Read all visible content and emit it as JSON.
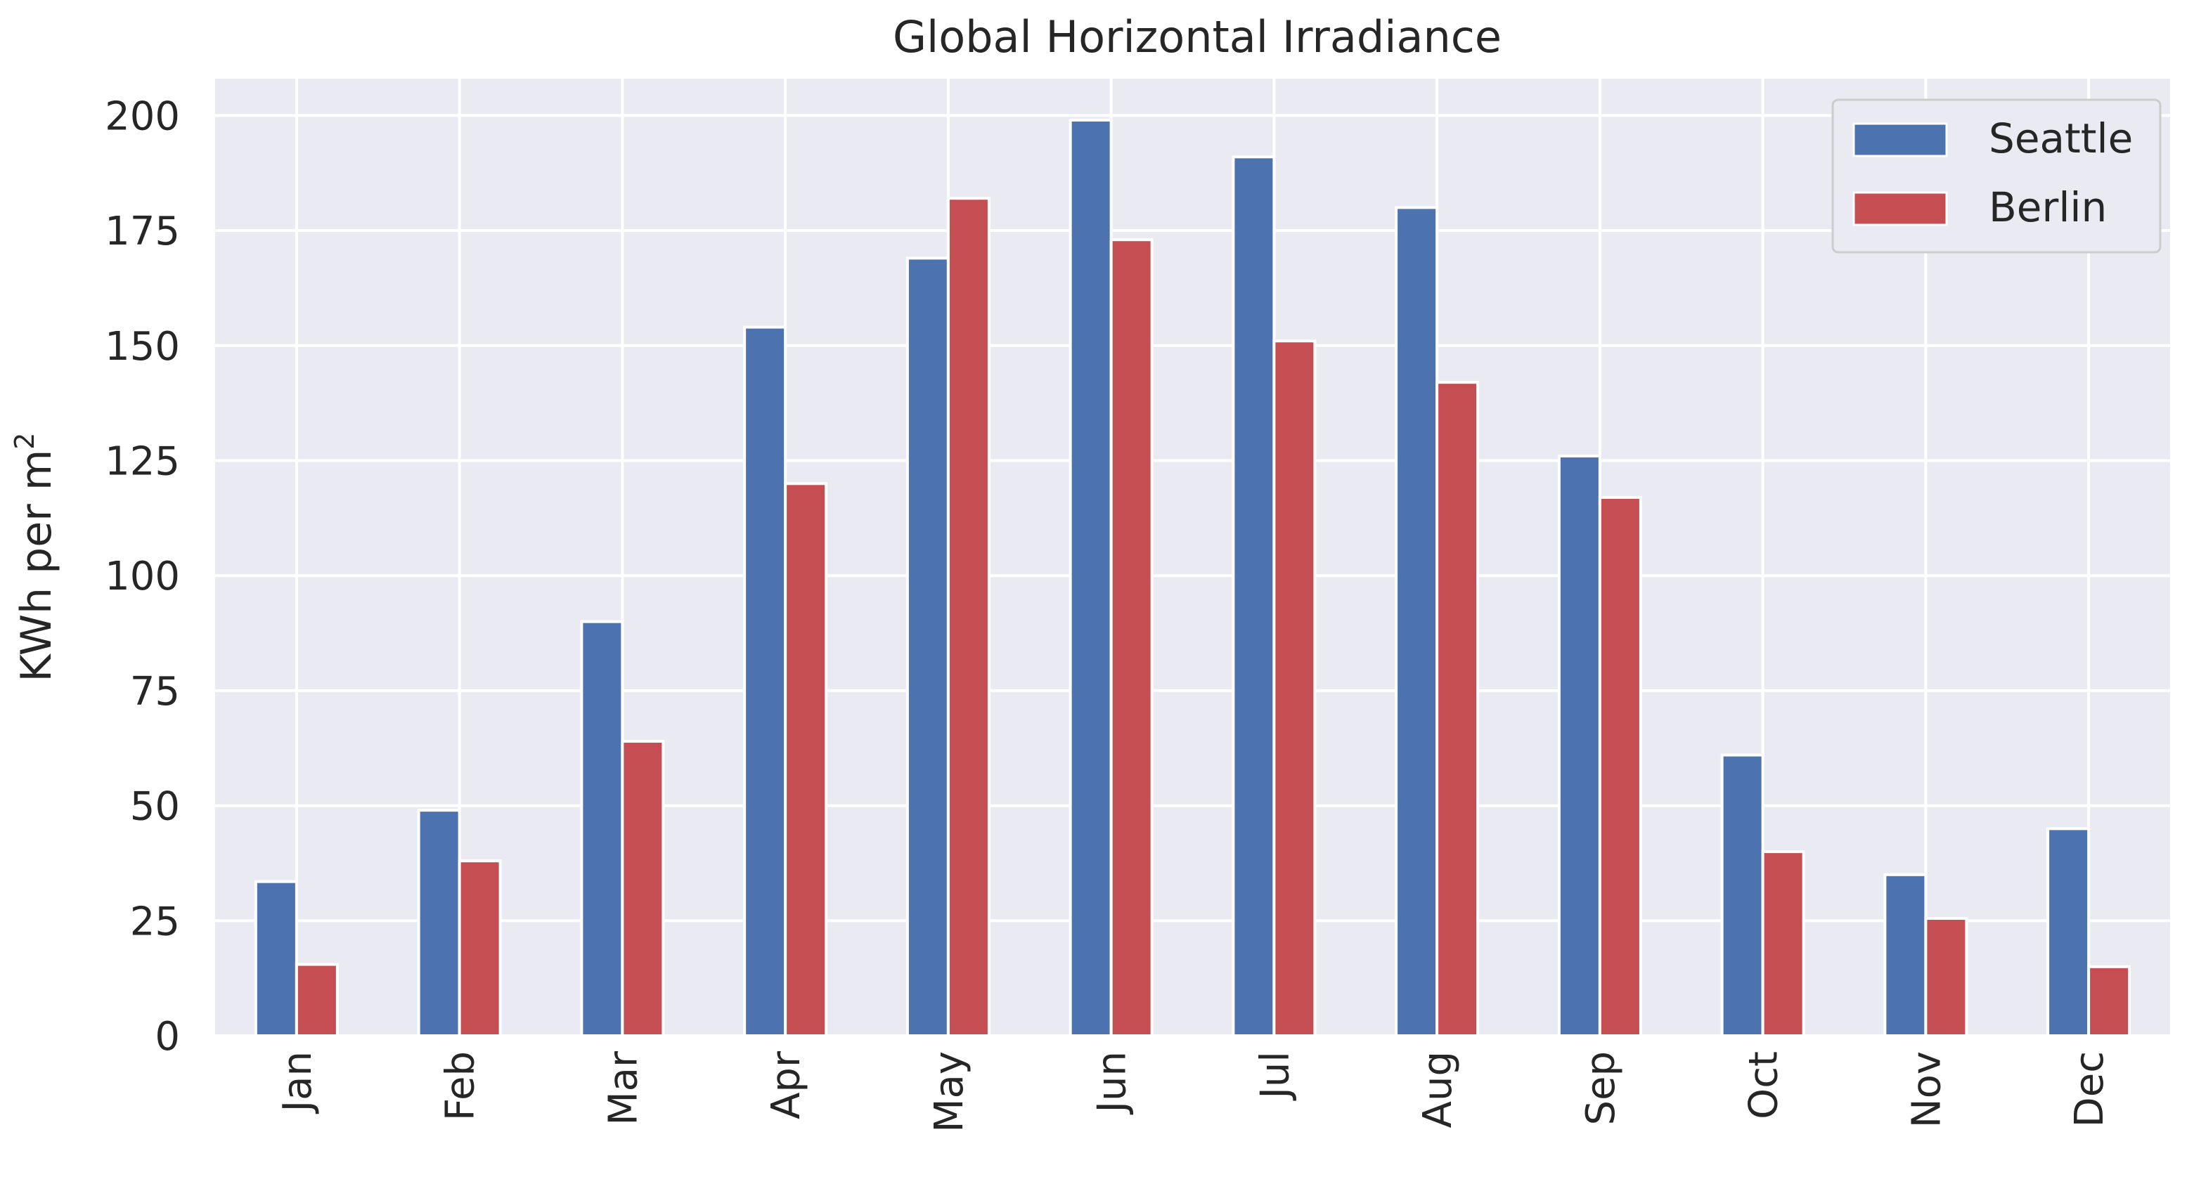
{
  "chart_data": {
    "type": "bar",
    "title": "Global Horizontal Irradiance",
    "xlabel": "",
    "ylabel": "KWh per m",
    "ylabel_superscript": "2",
    "categories": [
      "Jan",
      "Feb",
      "Mar",
      "Apr",
      "May",
      "Jun",
      "Jul",
      "Aug",
      "Sep",
      "Oct",
      "Nov",
      "Dec"
    ],
    "ylim": [
      0,
      208
    ],
    "yticks": [
      "0",
      "25",
      "50",
      "75",
      "100",
      "125",
      "150",
      "175",
      "200"
    ],
    "grid": true,
    "legend_placement": "top-right",
    "series": [
      {
        "name": "Seattle",
        "color": "#4C72B0",
        "values": [
          33.5,
          49,
          90,
          154,
          169,
          199,
          191,
          180,
          126,
          61,
          35,
          45
        ]
      },
      {
        "name": "Berlin",
        "color": "#C44E52",
        "values": [
          15.5,
          38,
          64,
          120,
          182,
          173,
          151,
          142,
          117,
          40,
          25.5,
          15
        ]
      }
    ]
  }
}
